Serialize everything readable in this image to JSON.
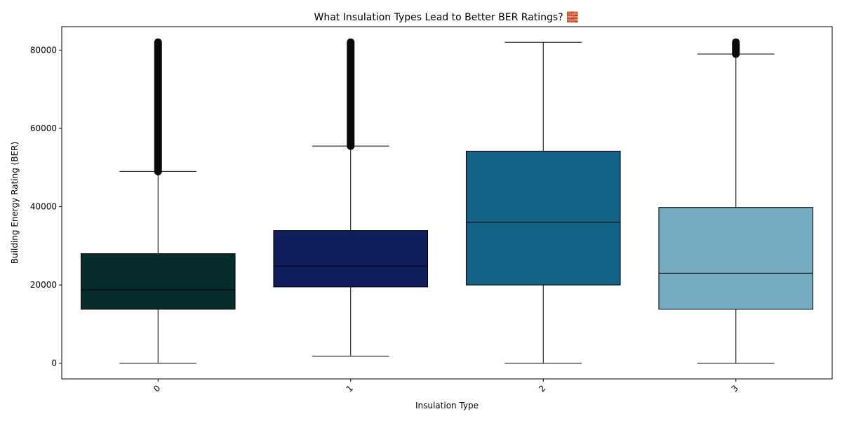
{
  "chart_data": {
    "type": "box",
    "title": "What Insulation Types Lead to Better BER Ratings? 🧱",
    "xlabel": "Insulation Type",
    "ylabel": "Building Energy Rating (BER)",
    "ylim": [
      -4000,
      86000
    ],
    "yticks": [
      0,
      20000,
      40000,
      60000,
      80000
    ],
    "grid": false,
    "categories": [
      "0",
      "1",
      "2",
      "3"
    ],
    "colors": [
      "#062c2c",
      "#0e1f5b",
      "#156289",
      "#74abc0"
    ],
    "boxes": [
      {
        "category": "0",
        "whisker_low": 0,
        "q1": 13800,
        "median": 18800,
        "q3": 28000,
        "whisker_high": 49000,
        "outliers_range": [
          49000,
          82000
        ]
      },
      {
        "category": "1",
        "whisker_low": 1800,
        "q1": 19500,
        "median": 24800,
        "q3": 33900,
        "whisker_high": 55500,
        "outliers_range": [
          55500,
          82000
        ]
      },
      {
        "category": "2",
        "whisker_low": 0,
        "q1": 20000,
        "median": 36000,
        "q3": 54200,
        "whisker_high": 82000,
        "outliers_range": null
      },
      {
        "category": "3",
        "whisker_low": 0,
        "q1": 13800,
        "median": 23000,
        "q3": 39800,
        "whisker_high": 79000,
        "outliers_range": [
          79000,
          82000
        ]
      }
    ]
  }
}
